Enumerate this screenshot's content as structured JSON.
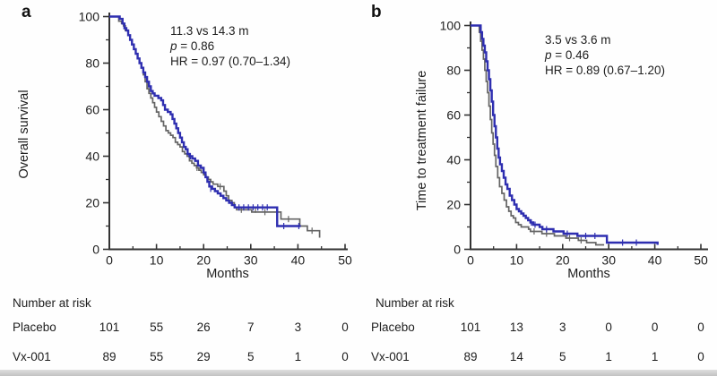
{
  "colors": {
    "vx001_blue": "#2e2eb0",
    "placebo_gray": "#646464",
    "axis": "#333333",
    "text": "#1d1d1d"
  },
  "figure": {
    "panels": [
      {
        "label": "a",
        "y_axis_title": "Overall survival",
        "x_axis_title": "Months",
        "annotation": {
          "median": "11.3 vs 14.3 m",
          "p_italic": "p",
          "p_rest": " = 0.86",
          "hr": "HR = 0.97 (0.70–1.34)"
        },
        "number_at_risk": {
          "title": "Number at risk",
          "rows": [
            {
              "label": "Placebo",
              "counts": [
                "101",
                "55",
                "26",
                "7",
                "3",
                "0"
              ]
            },
            {
              "label": "Vx-001",
              "counts": [
                "89",
                "55",
                "29",
                "5",
                "1",
                "0"
              ]
            }
          ]
        }
      },
      {
        "label": "b",
        "y_axis_title": "Time to treatment failure",
        "x_axis_title": "Months",
        "annotation": {
          "median": "3.5 vs 3.6 m",
          "p_italic": "p",
          "p_rest": " = 0.46",
          "hr": "HR = 0.89 (0.67–1.20)"
        },
        "number_at_risk": {
          "title": "Number at risk",
          "rows": [
            {
              "label": "Placebo",
              "counts": [
                "101",
                "13",
                "3",
                "0",
                "0",
                "0"
              ]
            },
            {
              "label": "Vx-001",
              "counts": [
                "89",
                "14",
                "5",
                "1",
                "1",
                "0"
              ]
            }
          ]
        }
      }
    ]
  },
  "chart_data": [
    {
      "type": "line",
      "subtype": "kaplan-meier-step",
      "title": "Overall survival",
      "xlabel": "Months",
      "ylabel": "Overall survival",
      "xlim": [
        0,
        50
      ],
      "ylim": [
        0,
        100
      ],
      "x_ticks": [
        0,
        10,
        20,
        30,
        40,
        50
      ],
      "y_ticks": [
        0,
        20,
        40,
        60,
        80,
        100
      ],
      "grid": false,
      "legend": "none",
      "series": [
        {
          "name": "Placebo",
          "color_key": "placebo_gray",
          "points": [
            [
              0,
              100
            ],
            [
              1.2,
              100
            ],
            [
              2,
              98
            ],
            [
              2.6,
              97
            ],
            [
              3,
              96
            ],
            [
              3.4,
              94
            ],
            [
              4,
              92
            ],
            [
              4.4,
              90
            ],
            [
              4.8,
              88
            ],
            [
              5.2,
              86
            ],
            [
              5.6,
              84
            ],
            [
              6,
              82
            ],
            [
              6.4,
              80
            ],
            [
              6.8,
              78
            ],
            [
              7.2,
              75
            ],
            [
              7.6,
              72
            ],
            [
              8,
              69
            ],
            [
              8.4,
              67
            ],
            [
              8.8,
              65
            ],
            [
              9.2,
              63
            ],
            [
              9.6,
              61
            ],
            [
              10,
              59
            ],
            [
              10.5,
              57
            ],
            [
              11,
              55
            ],
            [
              11.5,
              53
            ],
            [
              12,
              51
            ],
            [
              12.5,
              50
            ],
            [
              13,
              49
            ],
            [
              13.5,
              48
            ],
            [
              14,
              46
            ],
            [
              14.5,
              45
            ],
            [
              15,
              44
            ],
            [
              15.5,
              42
            ],
            [
              16,
              41
            ],
            [
              16.5,
              40
            ],
            [
              17,
              38
            ],
            [
              17.5,
              37
            ],
            [
              18,
              36
            ],
            [
              18.5,
              35
            ],
            [
              19,
              34
            ],
            [
              19.5,
              33
            ],
            [
              20,
              32
            ],
            [
              20.5,
              31
            ],
            [
              21,
              30
            ],
            [
              21.5,
              29
            ],
            [
              22,
              28
            ],
            [
              23,
              27
            ],
            [
              24.3,
              25
            ],
            [
              24.8,
              23
            ],
            [
              25.3,
              21
            ],
            [
              26,
              20
            ],
            [
              26.5,
              18
            ],
            [
              27,
              17
            ],
            [
              29.8,
              17
            ],
            [
              30.2,
              16
            ],
            [
              36,
              16
            ],
            [
              36.4,
              13
            ],
            [
              40,
              13
            ],
            [
              40.4,
              10
            ],
            [
              41.6,
              10
            ],
            [
              42,
              8
            ],
            [
              44.3,
              8
            ],
            [
              44.6,
              5
            ]
          ],
          "censor_marks": [
            [
              18.6,
              35
            ],
            [
              23.5,
              27
            ],
            [
              28,
              17
            ],
            [
              31,
              17
            ],
            [
              33,
              16
            ],
            [
              38,
              13
            ],
            [
              43,
              8
            ]
          ]
        },
        {
          "name": "Vx-001",
          "color_key": "vx001_blue",
          "points": [
            [
              0,
              100
            ],
            [
              1.6,
              100
            ],
            [
              2.2,
              99
            ],
            [
              2.8,
              97
            ],
            [
              3.2,
              95
            ],
            [
              3.6,
              94
            ],
            [
              4,
              92
            ],
            [
              4.4,
              90
            ],
            [
              4.8,
              88
            ],
            [
              5.2,
              86
            ],
            [
              5.6,
              84
            ],
            [
              6,
              82
            ],
            [
              6.4,
              80
            ],
            [
              6.8,
              78
            ],
            [
              7.2,
              76
            ],
            [
              7.6,
              74
            ],
            [
              8,
              72
            ],
            [
              8.4,
              70
            ],
            [
              8.8,
              68
            ],
            [
              9.2,
              67
            ],
            [
              9.6,
              66
            ],
            [
              10.4,
              65
            ],
            [
              11,
              64
            ],
            [
              11.4,
              62
            ],
            [
              11.8,
              60
            ],
            [
              12.4,
              59
            ],
            [
              13,
              58
            ],
            [
              13.4,
              56
            ],
            [
              13.8,
              54
            ],
            [
              14.2,
              52
            ],
            [
              14.6,
              50
            ],
            [
              15,
              48
            ],
            [
              15.4,
              46
            ],
            [
              15.8,
              44
            ],
            [
              16.2,
              43
            ],
            [
              16.6,
              41
            ],
            [
              17,
              40
            ],
            [
              17.6,
              39
            ],
            [
              18.2,
              38
            ],
            [
              18.8,
              36
            ],
            [
              19.4,
              35
            ],
            [
              20,
              33
            ],
            [
              20.4,
              31
            ],
            [
              20.8,
              29
            ],
            [
              21.2,
              27
            ],
            [
              21.8,
              26
            ],
            [
              22.4,
              25
            ],
            [
              23,
              24
            ],
            [
              23.6,
              23
            ],
            [
              24.2,
              22
            ],
            [
              24.8,
              21
            ],
            [
              25.4,
              20
            ],
            [
              26,
              19
            ],
            [
              26.6,
              18
            ],
            [
              35.4,
              18
            ],
            [
              35.6,
              10
            ],
            [
              40.6,
              10
            ]
          ],
          "censor_marks": [
            [
              17.2,
              40
            ],
            [
              21.5,
              26
            ],
            [
              27.5,
              18
            ],
            [
              28.5,
              18
            ],
            [
              29.5,
              18
            ],
            [
              30.5,
              18
            ],
            [
              31.5,
              18
            ],
            [
              32.5,
              18
            ],
            [
              33.5,
              18
            ],
            [
              37,
              10
            ],
            [
              40.2,
              10
            ]
          ]
        }
      ]
    },
    {
      "type": "line",
      "subtype": "kaplan-meier-step",
      "title": "Time to treatment failure",
      "xlabel": "Months",
      "ylabel": "Time to treatment failure",
      "xlim": [
        0,
        50
      ],
      "ylim": [
        0,
        100
      ],
      "x_ticks": [
        0,
        10,
        20,
        30,
        40,
        50
      ],
      "y_ticks": [
        0,
        20,
        40,
        60,
        80,
        100
      ],
      "grid": false,
      "legend": "none",
      "series": [
        {
          "name": "Placebo",
          "color_key": "placebo_gray",
          "points": [
            [
              0,
              100
            ],
            [
              1.4,
              100
            ],
            [
              1.9,
              97
            ],
            [
              2.2,
              93
            ],
            [
              2.5,
              89
            ],
            [
              2.8,
              85
            ],
            [
              3.1,
              80
            ],
            [
              3.4,
              75
            ],
            [
              3.7,
              70
            ],
            [
              4,
              64
            ],
            [
              4.3,
              58
            ],
            [
              4.6,
              52
            ],
            [
              4.9,
              47
            ],
            [
              5.2,
              42
            ],
            [
              5.5,
              37
            ],
            [
              5.9,
              32
            ],
            [
              6.3,
              28
            ],
            [
              6.8,
              25
            ],
            [
              7.3,
              22
            ],
            [
              7.8,
              19
            ],
            [
              8.3,
              17
            ],
            [
              8.8,
              15
            ],
            [
              9.3,
              14
            ],
            [
              9.8,
              12
            ],
            [
              10.4,
              11
            ],
            [
              11,
              10
            ],
            [
              12.2,
              10
            ],
            [
              12.6,
              9
            ],
            [
              13,
              8
            ],
            [
              15,
              8
            ],
            [
              15.5,
              7
            ],
            [
              17.8,
              7
            ],
            [
              18.2,
              6
            ],
            [
              20.3,
              6
            ],
            [
              20.7,
              5
            ],
            [
              23,
              5
            ],
            [
              23.4,
              4
            ],
            [
              24.8,
              4
            ],
            [
              25.2,
              3
            ],
            [
              26.8,
              3
            ],
            [
              27.2,
              2
            ],
            [
              29,
              2
            ]
          ],
          "censor_marks": [
            [
              13.8,
              8
            ],
            [
              16.5,
              7
            ],
            [
              21.5,
              5
            ],
            [
              24,
              4
            ]
          ]
        },
        {
          "name": "Vx-001",
          "color_key": "vx001_blue",
          "points": [
            [
              0,
              100
            ],
            [
              1.8,
              100
            ],
            [
              2.2,
              97
            ],
            [
              2.5,
              94
            ],
            [
              2.8,
              91
            ],
            [
              3.1,
              88
            ],
            [
              3.4,
              84
            ],
            [
              3.7,
              80
            ],
            [
              4,
              76
            ],
            [
              4.3,
              71
            ],
            [
              4.6,
              66
            ],
            [
              4.9,
              60
            ],
            [
              5.2,
              55
            ],
            [
              5.5,
              50
            ],
            [
              5.8,
              45
            ],
            [
              6.1,
              41
            ],
            [
              6.4,
              38
            ],
            [
              6.8,
              35
            ],
            [
              7.2,
              32
            ],
            [
              7.6,
              29
            ],
            [
              8,
              27
            ],
            [
              8.5,
              24
            ],
            [
              9,
              22
            ],
            [
              9.5,
              20
            ],
            [
              10,
              18
            ],
            [
              10.5,
              17
            ],
            [
              11,
              16
            ],
            [
              11.5,
              15
            ],
            [
              12,
              14
            ],
            [
              12.5,
              13
            ],
            [
              13,
              12
            ],
            [
              13.6,
              11
            ],
            [
              14.4,
              11
            ],
            [
              15,
              10
            ],
            [
              15.6,
              9
            ],
            [
              17.6,
              9
            ],
            [
              18,
              8
            ],
            [
              19.8,
              8
            ],
            [
              20.2,
              7
            ],
            [
              22.8,
              7
            ],
            [
              23.2,
              6
            ],
            [
              29.2,
              6
            ],
            [
              29.6,
              3
            ],
            [
              40.4,
              3
            ],
            [
              40.6,
              2
            ]
          ],
          "censor_marks": [
            [
              13.2,
              12
            ],
            [
              14,
              11
            ],
            [
              16.5,
              9
            ],
            [
              21,
              7
            ],
            [
              25,
              6
            ],
            [
              27,
              6
            ],
            [
              33,
              3
            ],
            [
              36,
              3
            ]
          ]
        }
      ]
    }
  ]
}
